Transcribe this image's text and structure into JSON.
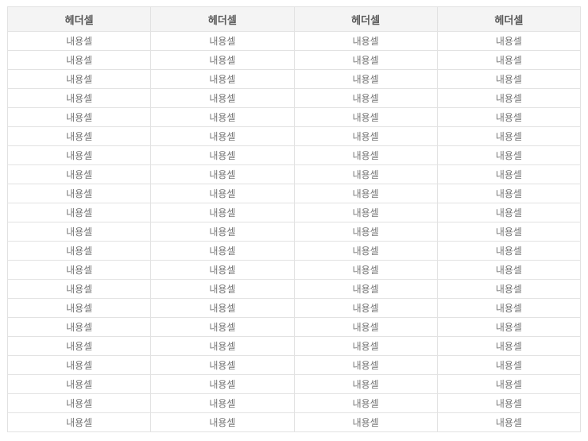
{
  "table": {
    "column_count": 4,
    "row_count": 21,
    "headers": [
      "헤더셀",
      "헤더셀",
      "헤더셀",
      "헤더셀"
    ],
    "cell_label": "내용셀",
    "colors": {
      "header_bg": "#f4f4f4",
      "header_text": "#595959",
      "cell_text": "#757575",
      "row_bg": "#ffffff",
      "border": "#e2e2e2"
    }
  }
}
